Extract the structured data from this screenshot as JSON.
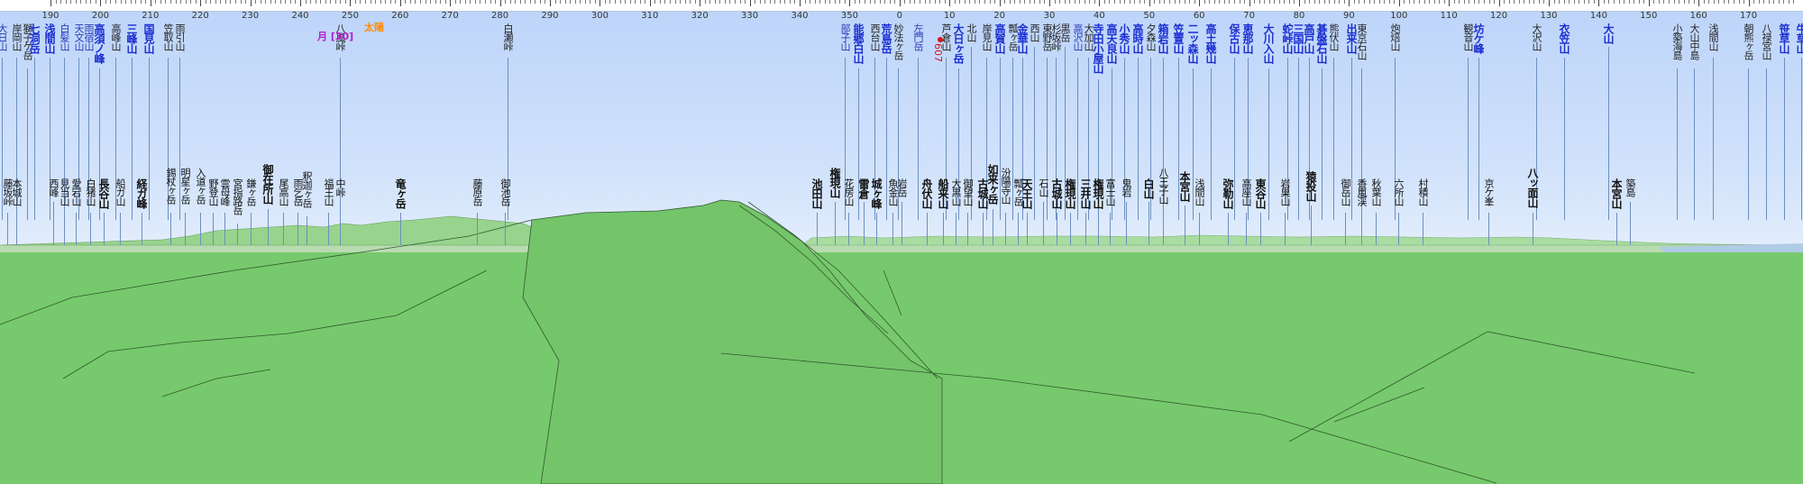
{
  "ruler": {
    "labels": [
      "190",
      "200",
      "210",
      "220",
      "230",
      "240",
      "250",
      "260",
      "270",
      "280",
      "290",
      "300",
      "310",
      "320",
      "330",
      "340",
      "350",
      "0",
      "10",
      "20",
      "30",
      "40",
      "50",
      "60",
      "70",
      "80",
      "90",
      "100",
      "110",
      "120",
      "130",
      "140",
      "150",
      "160",
      "170"
    ]
  },
  "overlay": {
    "sun": "太陽",
    "moon": "月 [30]",
    "marker": "607"
  },
  "colors": {
    "sky": "#c8dcf8",
    "ground": "#78c86e",
    "ridge": "#8ed486",
    "upper_name": "#1c2fd0"
  },
  "peaks_upper": [
    {
      "name": "大日山",
      "level": 2,
      "line": 0
    },
    {
      "name": "岸岡山",
      "level": 3,
      "line": 0
    },
    {
      "name": "獅子ケ岳",
      "level": 3,
      "line": 0
    },
    {
      "name": "七洞岳",
      "level": 1,
      "line": 0
    },
    {
      "name": "浅間山",
      "level": 1,
      "line": 0
    },
    {
      "name": "白髪山",
      "level": 2,
      "line": 0
    },
    {
      "name": "天文山",
      "level": 2,
      "line": 0
    },
    {
      "name": "雨宿山",
      "level": 2,
      "line": 0
    },
    {
      "name": "高須ノ峰",
      "level": 1,
      "line": 0
    },
    {
      "name": "高峰山",
      "level": 3,
      "line": 0
    },
    {
      "name": "三峰山",
      "level": 1,
      "line": 0
    },
    {
      "name": "国見山",
      "level": 1,
      "line": 0
    },
    {
      "name": "笠取山",
      "level": 3,
      "line": 0
    },
    {
      "name": "雨引山",
      "level": 3,
      "line": 0
    },
    {
      "name": "八風峠",
      "level": 3,
      "line": 1
    },
    {
      "name": "白瀬峠",
      "level": 3,
      "line": 1
    },
    {
      "name": "部子山",
      "level": 2,
      "line": 0
    },
    {
      "name": "能郷白山",
      "level": 1,
      "line": 0
    },
    {
      "name": "西台山",
      "level": 3,
      "line": 0
    },
    {
      "name": "荒島岳",
      "level": 1,
      "line": 0
    },
    {
      "name": "妙法ヶ岳",
      "level": 3,
      "line": 0
    },
    {
      "name": "左門岳",
      "level": 2,
      "line": 0
    },
    {
      "name": "芦倉山",
      "level": 3,
      "line": 0
    },
    {
      "name": "大日ヶ岳",
      "level": 1,
      "line": 0
    },
    {
      "name": "北山",
      "level": 3,
      "line": 0
    },
    {
      "name": "岸見山",
      "level": 3,
      "line": 0
    },
    {
      "name": "高賀山",
      "level": 1,
      "line": 0
    },
    {
      "name": "瓢ヶ岳",
      "level": 3,
      "line": 0
    },
    {
      "name": "金華山",
      "level": 1,
      "line": 0
    },
    {
      "name": "西山",
      "level": 3,
      "line": 0
    },
    {
      "name": "東野岳",
      "level": 3,
      "line": 0
    },
    {
      "name": "杉坂峠",
      "level": 3,
      "line": 0
    },
    {
      "name": "黒岳",
      "level": 3,
      "line": 0
    },
    {
      "name": "高沢山",
      "level": 2,
      "line": 0
    },
    {
      "name": "大加山",
      "level": 3,
      "line": 0
    },
    {
      "name": "寺田小屋山",
      "level": 1,
      "line": 0
    },
    {
      "name": "高天良山",
      "level": 1,
      "line": 0
    },
    {
      "name": "小秀山",
      "level": 1,
      "line": 0
    },
    {
      "name": "高時山",
      "level": 1,
      "line": 0
    },
    {
      "name": "夕森山",
      "level": 3,
      "line": 0
    },
    {
      "name": "箱岩山",
      "level": 1,
      "line": 0
    },
    {
      "name": "笠置山",
      "level": 1,
      "line": 0
    },
    {
      "name": "二ッ森山",
      "level": 1,
      "line": 0
    },
    {
      "name": "高土幾山",
      "level": 1,
      "line": 0
    },
    {
      "name": "保古山",
      "level": 1,
      "line": 0
    },
    {
      "name": "恵那山",
      "level": 1,
      "line": 0
    },
    {
      "name": "大川入山",
      "level": 1,
      "line": 0
    },
    {
      "name": "蛇峠山",
      "level": 1,
      "line": 0
    },
    {
      "name": "三国山",
      "level": 1,
      "line": 0
    },
    {
      "name": "高戸山",
      "level": 1,
      "line": 0
    },
    {
      "name": "碁盤石山",
      "level": 1,
      "line": 0
    },
    {
      "name": "熊伏山",
      "level": 3,
      "line": 0
    },
    {
      "name": "出来山",
      "level": 1,
      "line": 0
    },
    {
      "name": "東京石山",
      "level": 3,
      "line": 0
    },
    {
      "name": "炮焙山",
      "level": 3,
      "line": 0
    },
    {
      "name": "観音山",
      "level": 3,
      "line": 0
    },
    {
      "name": "坊ケ峰",
      "level": 1,
      "line": 0
    },
    {
      "name": "大沢山",
      "level": 3,
      "line": 0
    },
    {
      "name": "衣笠山",
      "level": 1,
      "line": 0
    },
    {
      "name": "大山",
      "level": 1,
      "line": 0
    },
    {
      "name": "小築海島",
      "level": 3,
      "line": 0
    },
    {
      "name": "大山中島",
      "level": 3,
      "line": 0
    },
    {
      "name": "浅間山",
      "level": 3,
      "line": 0
    },
    {
      "name": "朝熊ヶ岳",
      "level": 3,
      "line": 0
    },
    {
      "name": "八禄宮山",
      "level": 3,
      "line": 0
    },
    {
      "name": "笹草山",
      "level": 1,
      "line": 0
    },
    {
      "name": "牛草山",
      "level": 1,
      "line": 0
    }
  ],
  "peaks_lower": [
    {
      "name": "藤坂峠",
      "level": 3
    },
    {
      "name": "本城山",
      "level": 3
    },
    {
      "name": "西峰",
      "level": 3
    },
    {
      "name": "見当山",
      "level": 3
    },
    {
      "name": "愛宕山",
      "level": 3
    },
    {
      "name": "白猪山",
      "level": 3
    },
    {
      "name": "長谷山",
      "level": 1
    },
    {
      "name": "船ガ山",
      "level": 3
    },
    {
      "name": "経ガ峰",
      "level": 1
    },
    {
      "name": "錫杖ヶ岳",
      "level": 3
    },
    {
      "name": "明星ヶ岳",
      "level": 3
    },
    {
      "name": "入道ヶ岳",
      "level": 3
    },
    {
      "name": "野登山",
      "level": 3
    },
    {
      "name": "雲母峰",
      "level": 3
    },
    {
      "name": "宮指路岳",
      "level": 3
    },
    {
      "name": "鎌ヶ岳",
      "level": 3
    },
    {
      "name": "御在所山",
      "level": 1
    },
    {
      "name": "尾高山",
      "level": 3
    },
    {
      "name": "雨乞岳",
      "level": 3
    },
    {
      "name": "釈迦ヶ岳",
      "level": 3
    },
    {
      "name": "福王山",
      "level": 3
    },
    {
      "name": "中峠",
      "level": 3
    },
    {
      "name": "竜ヶ岳",
      "level": 1
    },
    {
      "name": "藤原岳",
      "level": 3
    },
    {
      "name": "御池岳",
      "level": 3
    },
    {
      "name": "池田山",
      "level": 1
    },
    {
      "name": "権現山",
      "level": 1
    },
    {
      "name": "花房山",
      "level": 3
    },
    {
      "name": "雷倉",
      "level": 1
    },
    {
      "name": "城ヶ峰",
      "level": 1
    },
    {
      "name": "魚金山",
      "level": 3
    },
    {
      "name": "岩岳",
      "level": 3
    },
    {
      "name": "舟伏山",
      "level": 1
    },
    {
      "name": "船来山",
      "level": 1
    },
    {
      "name": "大黒山",
      "level": 3
    },
    {
      "name": "御望山",
      "level": 3
    },
    {
      "name": "古城山",
      "level": 1
    },
    {
      "name": "如来ヶ岳",
      "level": 1
    },
    {
      "name": "汾陽寺山",
      "level": 3
    },
    {
      "name": "瓢ヶ岳",
      "level": 3
    },
    {
      "name": "天王山",
      "level": 1
    },
    {
      "name": "石山",
      "level": 3
    },
    {
      "name": "古城山",
      "level": 1
    },
    {
      "name": "権現山",
      "level": 1
    },
    {
      "name": "三井山",
      "level": 1
    },
    {
      "name": "権現山",
      "level": 1
    },
    {
      "name": "富士山",
      "level": 3
    },
    {
      "name": "鬼岩",
      "level": 3
    },
    {
      "name": "白山",
      "level": 1
    },
    {
      "name": "八王子山",
      "level": 3
    },
    {
      "name": "本宮山",
      "level": 1
    },
    {
      "name": "浅間山",
      "level": 3
    },
    {
      "name": "弥勒山",
      "level": 1
    },
    {
      "name": "高座山",
      "level": 3
    },
    {
      "name": "東谷山",
      "level": 1
    },
    {
      "name": "岩巣山",
      "level": 3
    },
    {
      "name": "猿投山",
      "level": 1
    },
    {
      "name": "御岳山",
      "level": 3
    },
    {
      "name": "香嵐渓",
      "level": 3
    },
    {
      "name": "秋葉山",
      "level": 3
    },
    {
      "name": "六所山",
      "level": 3
    },
    {
      "name": "村積山",
      "level": 3
    },
    {
      "name": "京ケ峯",
      "level": 3
    },
    {
      "name": "八ッ面山",
      "level": 1
    },
    {
      "name": "本宮山",
      "level": 1
    },
    {
      "name": "築島",
      "level": 3
    }
  ]
}
